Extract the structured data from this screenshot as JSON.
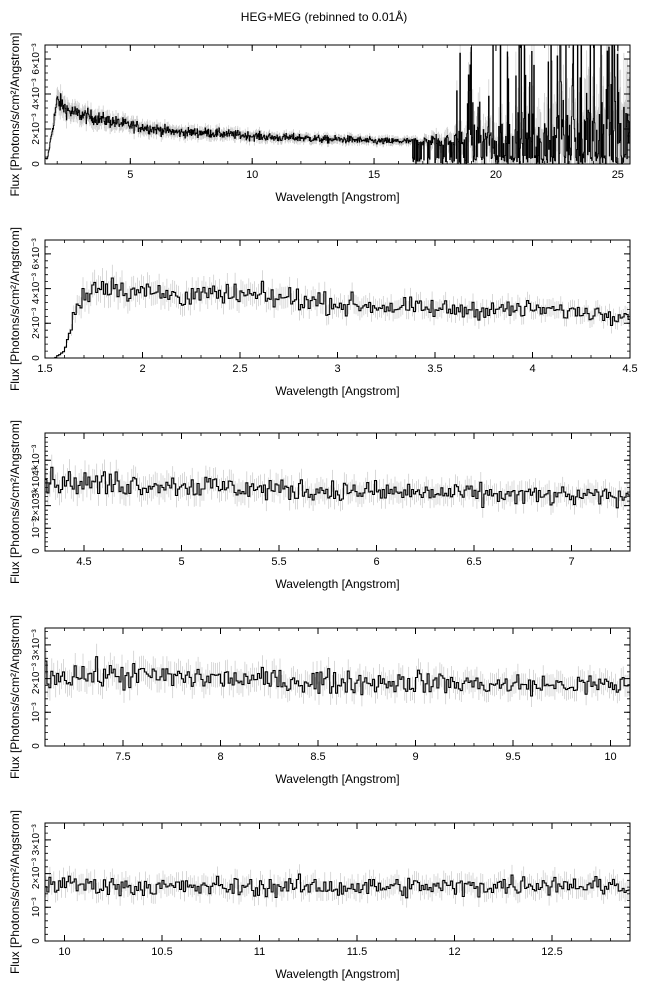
{
  "figure": {
    "title": "HEG+MEG (rebinned to 0.01Å)"
  },
  "chart_data": [
    {
      "type": "line",
      "subtype": "step-with-errorbars",
      "panel": 1,
      "title": "HEG+MEG (rebinned to 0.01Å)",
      "xlabel": "Wavelength [Angstrom]",
      "ylabel": "Flux [Photons/s/cm²/Angstrom]",
      "xlim": [
        1.5,
        25.5
      ],
      "ylim": [
        0,
        0.0068
      ],
      "x_ticks": [
        5,
        10,
        15,
        20,
        25
      ],
      "x_tick_labels": [
        "5",
        "10",
        "15",
        "20",
        "25"
      ],
      "y_ticks": [
        0,
        0.002,
        0.004,
        0.006
      ],
      "y_tick_labels": [
        "0",
        "2×10⁻³",
        "4×10⁻³",
        "6×10⁻³"
      ],
      "grid": false,
      "series": [
        {
          "x": [
            1.6,
            2.0,
            2.5,
            3.0,
            4.0,
            5.0,
            6.0,
            7.0,
            8.0,
            9.0,
            10.0,
            11.0,
            12.0,
            13.0,
            14.0,
            15.0,
            16.0,
            17.0,
            18.0,
            19.0,
            20.0,
            21.0,
            22.0,
            23.0,
            24.0,
            25.0
          ],
          "y": [
            0.0003,
            0.0036,
            0.003,
            0.0028,
            0.0025,
            0.0022,
            0.002,
            0.0018,
            0.0018,
            0.0017,
            0.0016,
            0.0015,
            0.0015,
            0.0014,
            0.0014,
            0.0013,
            0.0013,
            0.0013,
            0.0014,
            0.0015,
            0.0016,
            0.0018,
            0.0018,
            0.0019,
            0.002,
            0.0021
          ],
          "color": "#000000"
        }
      ]
    },
    {
      "type": "line",
      "subtype": "step-with-errorbars",
      "panel": 2,
      "xlabel": "Wavelength [Angstrom]",
      "ylabel": "Flux [Photons/s/cm²/Angstrom]",
      "xlim": [
        1.5,
        4.5
      ],
      "ylim": [
        0,
        0.0068
      ],
      "x_ticks": [
        1.5,
        2,
        2.5,
        3,
        3.5,
        4,
        4.5
      ],
      "x_tick_labels": [
        "1.5",
        "2",
        "2.5",
        "3",
        "3.5",
        "4",
        "4.5"
      ],
      "y_ticks": [
        0,
        0.002,
        0.004,
        0.006
      ],
      "y_tick_labels": [
        "0",
        "2×10⁻³",
        "4×10⁻³",
        "6×10⁻³"
      ],
      "grid": false,
      "series": [
        {
          "x": [
            1.55,
            1.6,
            1.65,
            1.7,
            1.8,
            1.9,
            2.0,
            2.2,
            2.5,
            2.8,
            3.0,
            3.5,
            4.0,
            4.5
          ],
          "y": [
            0.0,
            0.0004,
            0.0025,
            0.0037,
            0.0043,
            0.004,
            0.0038,
            0.0036,
            0.0036,
            0.0034,
            0.0031,
            0.0028,
            0.0028,
            0.0025
          ],
          "color": "#000000"
        }
      ]
    },
    {
      "type": "line",
      "subtype": "step-with-errorbars",
      "panel": 3,
      "xlabel": "Wavelength [Angstrom]",
      "ylabel": "Flux [Photons/s/cm²/Angstrom]",
      "xlim": [
        4.3,
        7.3
      ],
      "ylim": [
        0,
        0.0052
      ],
      "x_ticks": [
        4.5,
        5,
        5.5,
        6,
        6.5,
        7
      ],
      "x_tick_labels": [
        "4.5",
        "5",
        "5.5",
        "6",
        "6.5",
        "7"
      ],
      "y_ticks": [
        0,
        0.001,
        0.002,
        0.003,
        0.004
      ],
      "y_tick_labels": [
        "0",
        "10⁻³",
        "2×10⁻³",
        "3×10⁻³",
        "4×10⁻³"
      ],
      "grid": false,
      "series": [
        {
          "x": [
            4.3,
            4.5,
            5.0,
            5.5,
            6.0,
            6.5,
            7.0,
            7.3
          ],
          "y": [
            0.0031,
            0.003,
            0.0029,
            0.0027,
            0.0026,
            0.0025,
            0.0024,
            0.0024
          ],
          "color": "#000000"
        }
      ]
    },
    {
      "type": "line",
      "subtype": "step-with-errorbars",
      "panel": 4,
      "xlabel": "Wavelength [Angstrom]",
      "ylabel": "Flux [Photons/s/cm²/Angstrom]",
      "xlim": [
        7.1,
        10.1
      ],
      "ylim": [
        0,
        0.0035
      ],
      "x_ticks": [
        7.5,
        8,
        8.5,
        9,
        9.5,
        10
      ],
      "x_tick_labels": [
        "7.5",
        "8",
        "8.5",
        "9",
        "9.5",
        "10"
      ],
      "y_ticks": [
        0,
        0.001,
        0.002,
        0.003
      ],
      "y_tick_labels": [
        "0",
        "10⁻³",
        "2×10⁻³",
        "3×10⁻³"
      ],
      "grid": false,
      "series": [
        {
          "x": [
            7.1,
            7.5,
            8.0,
            8.5,
            9.0,
            9.5,
            10.0,
            10.1
          ],
          "y": [
            0.0021,
            0.0021,
            0.002,
            0.0019,
            0.0019,
            0.0018,
            0.0018,
            0.0018
          ],
          "color": "#000000"
        }
      ]
    },
    {
      "type": "line",
      "subtype": "step-with-errorbars",
      "panel": 5,
      "xlabel": "Wavelength [Angstrom]",
      "ylabel": "Flux [Photons/s/cm²/Angstrom]",
      "xlim": [
        9.9,
        12.9
      ],
      "ylim": [
        0,
        0.0035
      ],
      "x_ticks": [
        10,
        10.5,
        11,
        11.5,
        12,
        12.5
      ],
      "x_tick_labels": [
        "10",
        "10.5",
        "11",
        "11.5",
        "12",
        "12.5"
      ],
      "y_ticks": [
        0,
        0.001,
        0.002,
        0.003
      ],
      "y_tick_labels": [
        "0",
        "10⁻³",
        "2×10⁻³",
        "3×10⁻³"
      ],
      "grid": false,
      "series": [
        {
          "x": [
            9.9,
            10.5,
            11.0,
            11.5,
            12.0,
            12.5,
            12.9
          ],
          "y": [
            0.0017,
            0.0016,
            0.0016,
            0.0016,
            0.0016,
            0.0017,
            0.0016
          ],
          "color": "#000000"
        }
      ]
    }
  ]
}
